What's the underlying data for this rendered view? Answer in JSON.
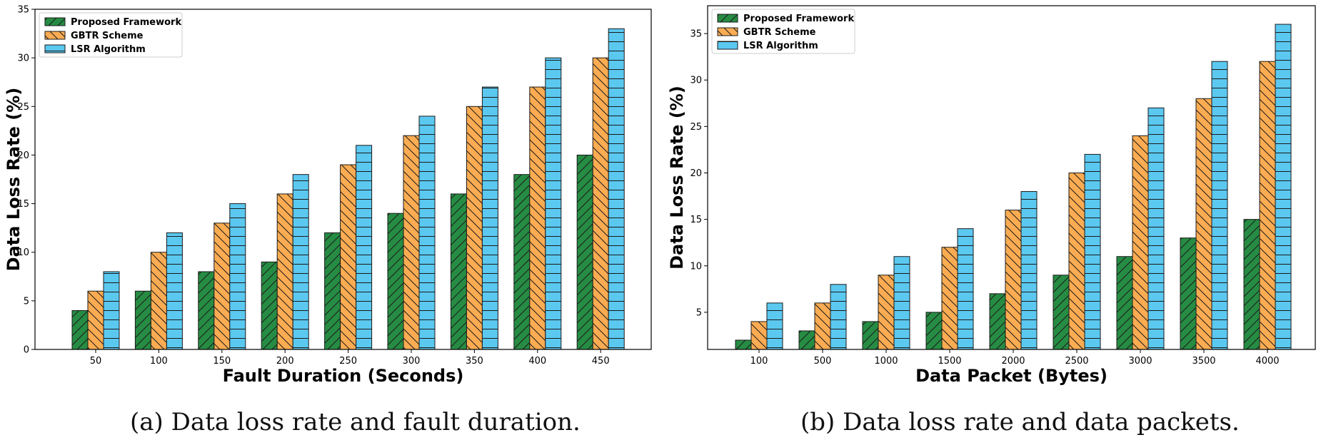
{
  "colors": {
    "proposed": "#268c43",
    "gbtr": "#fbac52",
    "lsr": "#5bc8f0",
    "edge": "#1a1a1a"
  },
  "chart_data": [
    {
      "type": "bar",
      "xlabel": "Fault Duration (Seconds)",
      "ylabel": "Data Loss Rate (%)",
      "categories": [
        "50",
        "100",
        "150",
        "200",
        "250",
        "300",
        "350",
        "400",
        "450"
      ],
      "ylim": [
        0,
        35
      ],
      "yticks": [
        0,
        5,
        10,
        15,
        20,
        25,
        30,
        35
      ],
      "legend_position": "top-left",
      "series": [
        {
          "name": "Proposed Framework",
          "values": [
            4,
            6,
            8,
            9,
            12,
            14,
            16,
            18,
            20
          ]
        },
        {
          "name": "GBTR Scheme",
          "values": [
            6,
            10,
            13,
            16,
            19,
            22,
            25,
            27,
            30
          ]
        },
        {
          "name": "LSR Algorithm",
          "values": [
            8,
            12,
            15,
            18,
            21,
            24,
            27,
            30,
            33
          ]
        }
      ],
      "caption": "(a) Data loss rate and fault duration."
    },
    {
      "type": "bar",
      "xlabel": "Data Packet (Bytes)",
      "ylabel": "Data Loss Rate (%)",
      "categories": [
        "100",
        "500",
        "1000",
        "1500",
        "2000",
        "2500",
        "3000",
        "3500",
        "4000"
      ],
      "ylim": [
        1,
        38
      ],
      "yticks": [
        5,
        10,
        15,
        20,
        25,
        30,
        35
      ],
      "legend_position": "top-left",
      "series": [
        {
          "name": "Proposed Framework",
          "values": [
            2,
            3,
            4,
            5,
            7,
            9,
            11,
            13,
            15
          ]
        },
        {
          "name": "GBTR Scheme",
          "values": [
            4,
            6,
            9,
            12,
            16,
            20,
            24,
            28,
            32
          ]
        },
        {
          "name": "LSR Algorithm",
          "values": [
            6,
            8,
            11,
            14,
            18,
            22,
            27,
            32,
            36
          ]
        }
      ],
      "caption": "(b) Data loss rate and data packets."
    }
  ]
}
